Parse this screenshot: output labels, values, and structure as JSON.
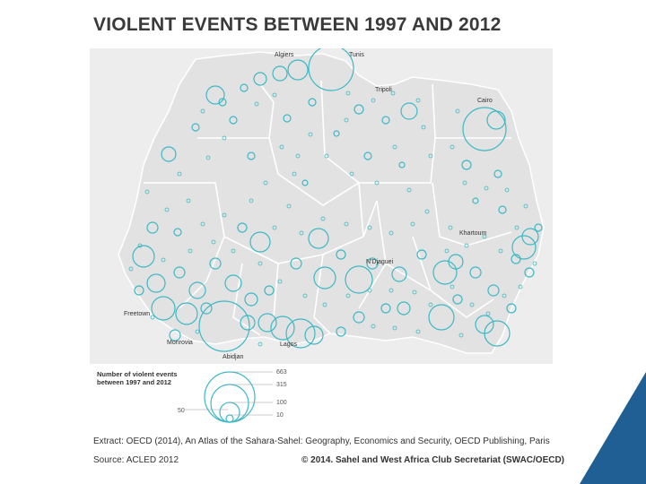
{
  "title": "VIOLENT EVENTS BETWEEN 1997 AND 2012",
  "cities": [
    {
      "name": "Algiers"
    },
    {
      "name": "Tunis"
    },
    {
      "name": "Tripoli"
    },
    {
      "name": "Cairo"
    },
    {
      "name": "Khartoum"
    },
    {
      "name": "N'Djaguei"
    },
    {
      "name": "Freetown"
    },
    {
      "name": "Monrovia"
    },
    {
      "name": "Lagos"
    },
    {
      "name": "Abidjan"
    }
  ],
  "legend": {
    "title_line1": "Number of violent events",
    "title_line2": "between 1997 and 2012",
    "values": [
      "663",
      "315",
      "100",
      "10"
    ],
    "left_value": "50"
  },
  "footer": {
    "extract": "Extract: OECD (2014), An Atlas of the Sahara-Sahel: Geography, Economics and Security, OECD Publishing, Paris",
    "source": "Source: ACLED 2012",
    "copyright": "© 2014. Sahel and West Africa Club Secretariat (SWAC/OECD)"
  },
  "colors": {
    "circle": "#3db8c5",
    "land": "#e2e2e2",
    "border": "#ffffff",
    "accent_corner": "#1f5f93"
  }
}
